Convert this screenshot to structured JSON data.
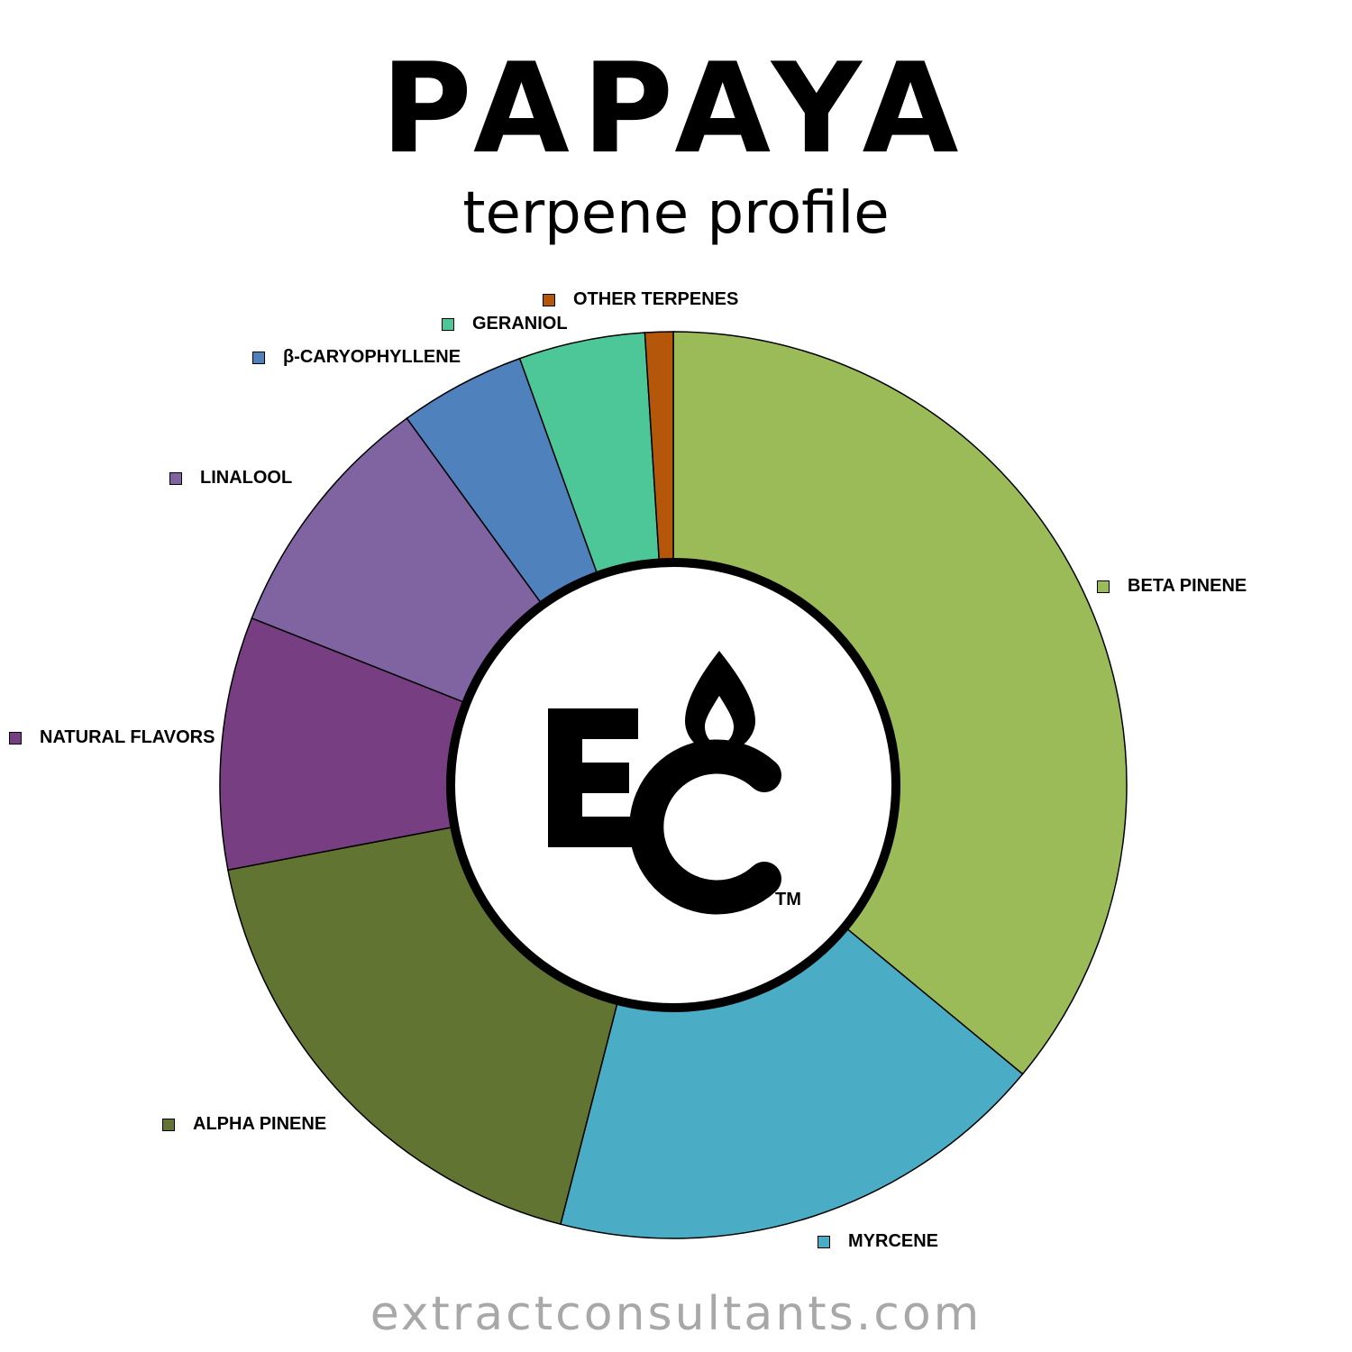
{
  "header": {
    "title": "PAPAYA",
    "subtitle": "terpene profile"
  },
  "footer": {
    "website": "extractconsultants.com"
  },
  "logo": {
    "text": "EC",
    "trademark": "TM"
  },
  "chart_data": {
    "type": "pie",
    "donut": true,
    "start": "top, clockwise",
    "categories": [
      "BETA PINENE",
      "MYRCENE",
      "ALPHA PINENE",
      "NATURAL FLAVORS",
      "LINALOOL",
      "β-CARYOPHYLLENE",
      "GERANIOL",
      "OTHER TERPENES"
    ],
    "values": [
      36,
      18,
      18,
      9,
      9,
      4.5,
      4.5,
      1
    ],
    "colors": [
      "#9bbb59",
      "#4bacc6",
      "#617431",
      "#773f82",
      "#8064a2",
      "#4f81bd",
      "#4dc797",
      "#b5570b"
    ],
    "legend": "labels next to slices"
  }
}
